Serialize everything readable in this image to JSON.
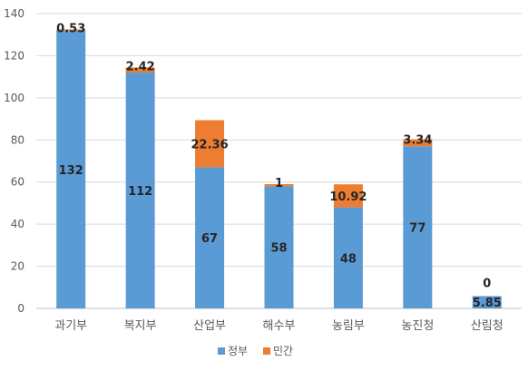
{
  "chart_data": {
    "type": "bar",
    "stacked": true,
    "categories": [
      "과기부",
      "복지부",
      "산업부",
      "해수부",
      "농림부",
      "농진청",
      "산림청"
    ],
    "series": [
      {
        "name": "정부",
        "color": "#5B9BD5",
        "values": [
          132,
          112,
          67,
          58,
          48,
          77,
          5.85
        ],
        "labels": [
          "132",
          "112",
          "67",
          "58",
          "48",
          "77",
          "5.85"
        ]
      },
      {
        "name": "민간",
        "color": "#ED7D31",
        "values": [
          0.53,
          2.42,
          22.36,
          1,
          10.92,
          3.34,
          0
        ],
        "labels": [
          "0.53",
          "2.42",
          "22.36",
          "1",
          "10.92",
          "3.34",
          "0"
        ]
      }
    ],
    "ylim": [
      0,
      140
    ],
    "yticks": [
      0,
      20,
      40,
      60,
      80,
      100,
      120,
      140
    ],
    "grid": true,
    "gridline_color": "#D9D9D9",
    "legend_position": "bottom"
  }
}
